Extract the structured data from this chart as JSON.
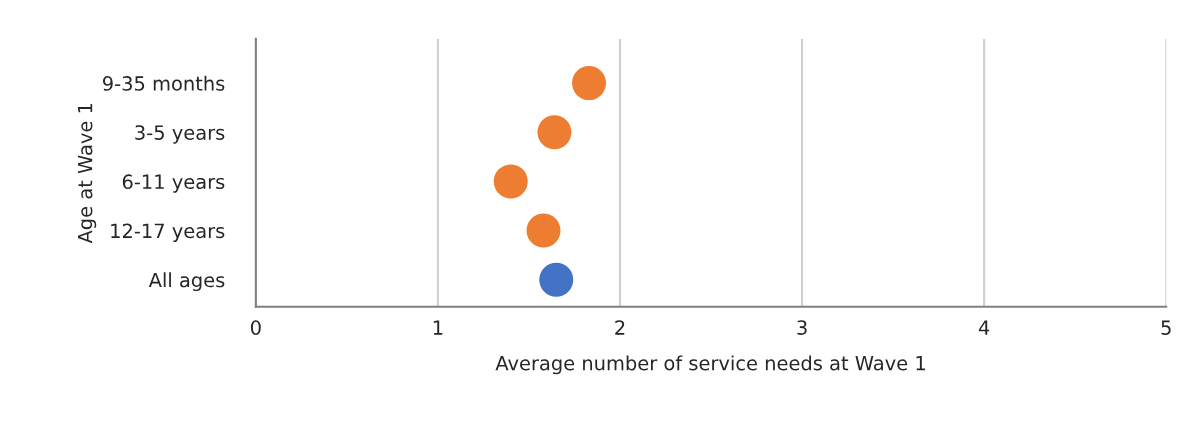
{
  "chart_data": {
    "type": "scatter",
    "orientation": "horizontal",
    "xlabel": "Average number of service needs at Wave 1",
    "ylabel": "Age at Wave 1",
    "categories": [
      "9-35 months",
      "3-5 years",
      "6-11 years",
      "12-17 years",
      "All ages"
    ],
    "values": [
      1.83,
      1.64,
      1.4,
      1.58,
      1.65
    ],
    "colors": [
      "#ed7d31",
      "#ed7d31",
      "#ed7d31",
      "#ed7d31",
      "#4472c4"
    ],
    "xlim": [
      0,
      5
    ],
    "xticks": [
      0,
      1,
      2,
      3,
      4,
      5
    ],
    "grid": "x",
    "marker": "circle",
    "legend": false
  }
}
